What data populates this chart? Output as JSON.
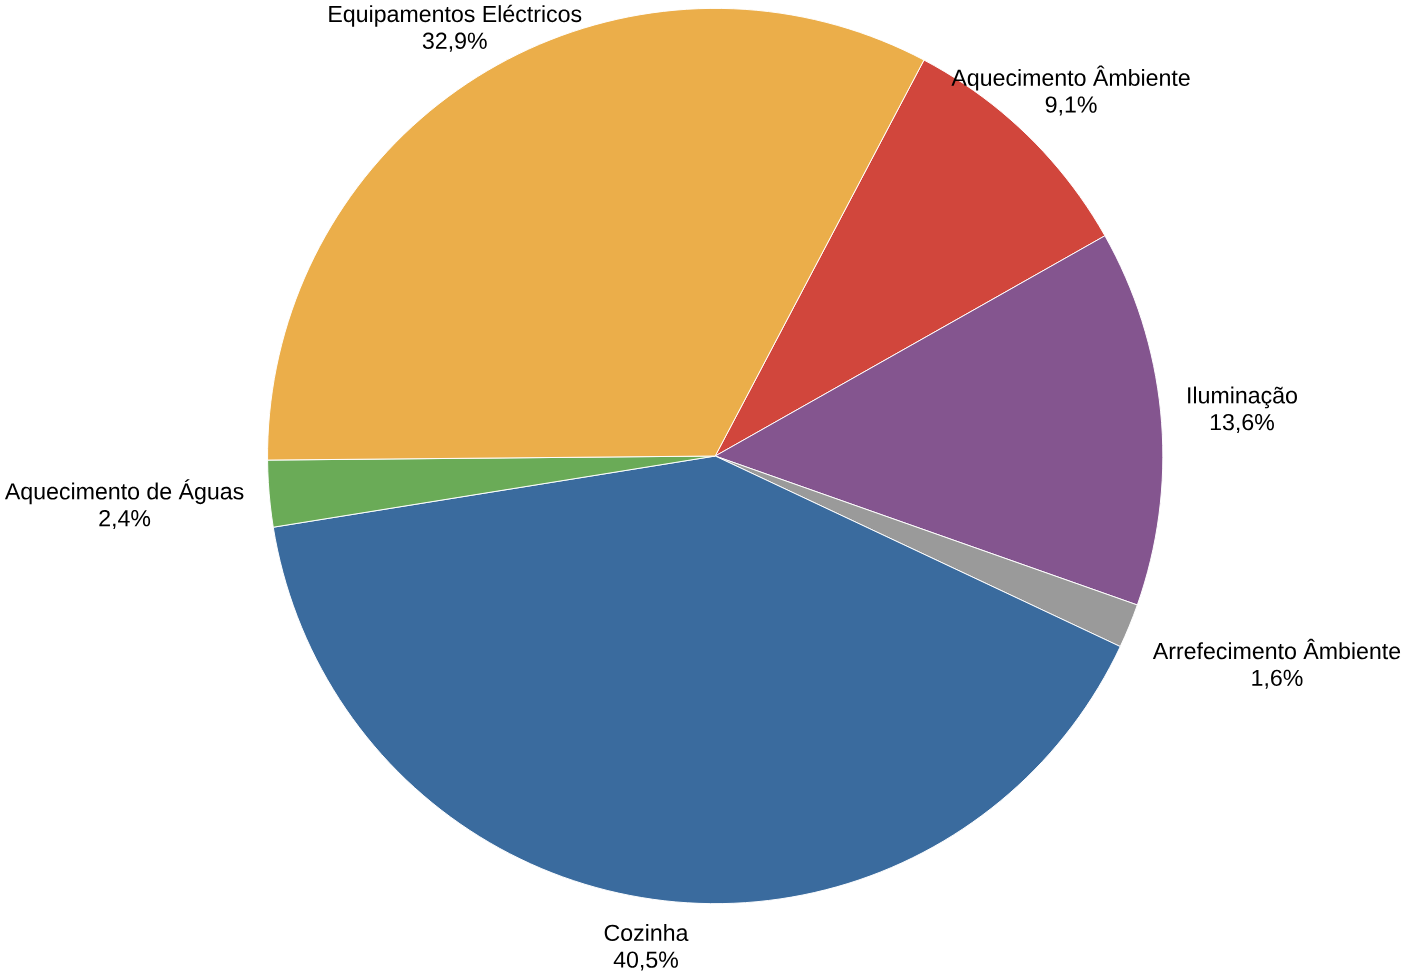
{
  "chart_data": {
    "type": "pie",
    "categories": [
      "Aquecimento Âmbiente",
      "Iluminação",
      "Arrefecimento Âmbiente",
      "Cozinha",
      "Aquecimento de Águas",
      "Equipamentos Eléctricos"
    ],
    "values": [
      9.1,
      13.6,
      1.6,
      40.5,
      2.4,
      32.9
    ],
    "value_labels": [
      "9,1%",
      "13,6%",
      "1,6%",
      "40,5%",
      "2,4%",
      "32,9%"
    ],
    "colors": [
      "#d1463c",
      "#84558f",
      "#9a9a9a",
      "#3a6b9e",
      "#6aab57",
      "#ebae4a"
    ]
  }
}
